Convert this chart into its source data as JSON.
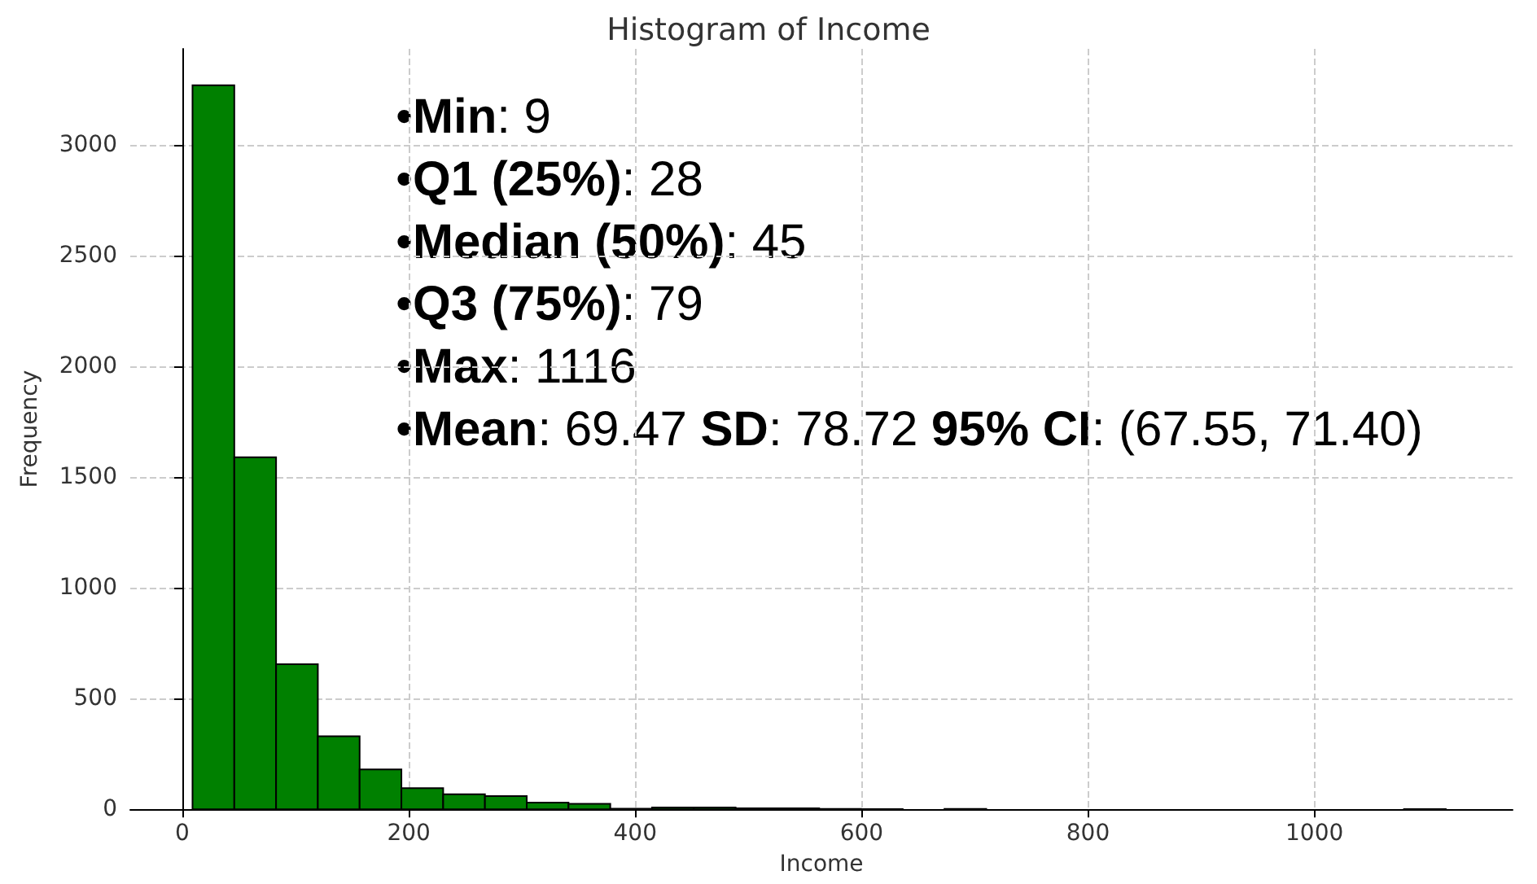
{
  "chart_data": {
    "type": "histogram",
    "title": "Histogram of Income",
    "xlabel": "Income",
    "ylabel": "Frequency",
    "bins": [
      9,
      45.9,
      82.8,
      119.7,
      156.6,
      193.5,
      230.4,
      267.3,
      304.2,
      341.1,
      378,
      414.9,
      451.8,
      488.7,
      525.6,
      562.5,
      599.4,
      636.3,
      673.2,
      710.1,
      747,
      783.9,
      820.8,
      857.7,
      894.6,
      931.5,
      968.4,
      1005.3,
      1042.2,
      1079.1,
      1116
    ],
    "values": [
      3270,
      1590,
      655,
      330,
      180,
      95,
      68,
      60,
      30,
      25,
      3,
      8,
      8,
      4,
      4,
      2,
      1,
      0,
      2,
      0,
      0,
      0,
      0,
      0,
      0,
      0,
      0,
      0,
      0,
      1
    ],
    "color": "#008000",
    "xlim": [
      -46,
      1175
    ],
    "xticks": [
      0,
      200,
      400,
      600,
      800,
      1000
    ],
    "ylim": [
      0,
      3435
    ],
    "yticks": [
      0,
      500,
      1000,
      1500,
      2000,
      2500,
      3000
    ],
    "grid": true,
    "annotations": [
      "•Min: 9",
      "•Q1 (25%): 28",
      "•Median (50%): 45",
      "•Q3 (75%): 79",
      "•Max: 1116",
      "•Mean: 69.47 SD: 78.72 95% CI: (67.55, 71.40)"
    ]
  }
}
